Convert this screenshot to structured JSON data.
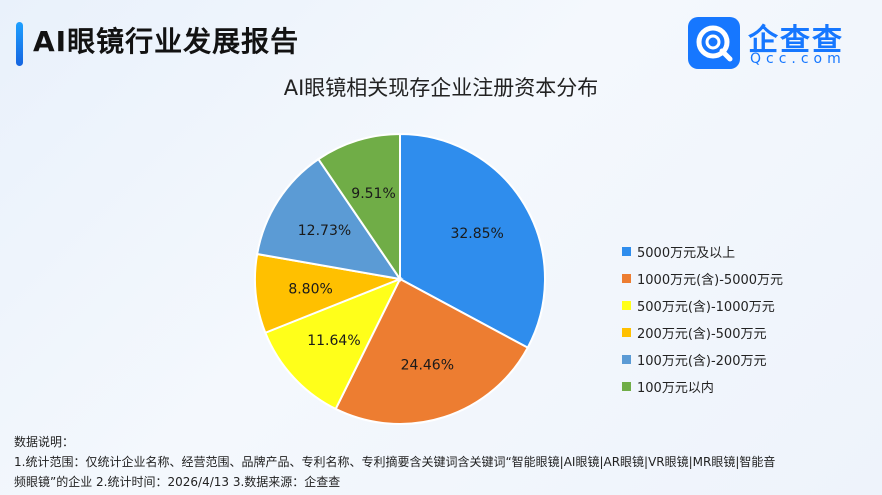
{
  "header": {
    "title": "AI眼镜行业发展报告"
  },
  "logo": {
    "name": "企查查",
    "url": "Qcc.com"
  },
  "chart_data": {
    "type": "pie",
    "title": "AI眼镜相关现存企业注册资本分布",
    "slices": [
      {
        "label": "5000万元及以上",
        "value": 32.85,
        "display": "32.85%",
        "color": "#2f8ded"
      },
      {
        "label": "1000万元(含)-5000万元",
        "value": 24.46,
        "display": "24.46%",
        "color": "#ed7d31"
      },
      {
        "label": "500万元(含)-1000万元",
        "value": 11.64,
        "display": "11.64%",
        "color": "#ffff1a"
      },
      {
        "label": "200万元(含)-500万元",
        "value": 8.8,
        "display": "8.80%",
        "color": "#ffc000"
      },
      {
        "label": "100万元(含)-200万元",
        "value": 12.73,
        "display": "12.73%",
        "color": "#5b9bd5"
      },
      {
        "label": "100万元以内",
        "value": 9.51,
        "display": "9.51%",
        "color": "#70ad47"
      }
    ],
    "legend_position": "right"
  },
  "notes": {
    "heading": "数据说明：",
    "line1": "1.统计范围：仅统计企业名称、经营范围、品牌产品、专利名称、专利摘要含关键词含关键词“智能眼镜|AI眼镜|AR眼镜|VR眼镜|MR眼镜|智能音",
    "line2": "频眼镜”的企业  2.统计时间：2026/4/13  3.数据来源：企查查"
  }
}
